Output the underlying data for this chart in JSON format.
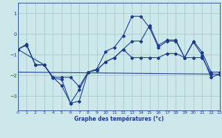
{
  "xlabel": "Graphe des températures (°c)",
  "bg_color": "#cce8ea",
  "grid_color": "#a8c8cc",
  "line_color": "#1a3a9a",
  "xlim": [
    0,
    23
  ],
  "ylim": [
    -3.7,
    1.5
  ],
  "xticks": [
    0,
    1,
    2,
    3,
    4,
    5,
    6,
    7,
    8,
    9,
    10,
    11,
    12,
    13,
    14,
    15,
    16,
    17,
    18,
    19,
    20,
    21,
    22,
    23
  ],
  "yticks": [
    -3,
    -2,
    -1,
    0,
    1
  ],
  "curve1_x": [
    0,
    1,
    2,
    3,
    4,
    5,
    6,
    7,
    8,
    9,
    10,
    11,
    12,
    13,
    14,
    15,
    16,
    17,
    18,
    19,
    20,
    21,
    22,
    23
  ],
  "curve1_y": [
    -0.75,
    -0.55,
    -1.5,
    -1.5,
    -2.1,
    -2.5,
    -3.35,
    -2.7,
    -1.85,
    -1.7,
    -0.85,
    -0.65,
    -0.1,
    0.85,
    0.85,
    0.3,
    -0.65,
    -0.35,
    -0.35,
    -1.15,
    -0.4,
    -1.05,
    -2.1,
    -1.95
  ],
  "curve2_x": [
    0,
    1,
    2,
    3,
    4,
    5,
    6,
    7,
    8,
    9,
    10,
    11,
    12,
    13,
    14,
    15,
    16,
    17,
    18,
    19,
    20,
    21,
    22,
    23
  ],
  "curve2_y": [
    -0.75,
    -0.5,
    -1.5,
    -1.5,
    -2.15,
    -2.2,
    -3.35,
    -3.25,
    -1.85,
    -1.75,
    -1.35,
    -1.15,
    -0.75,
    -0.35,
    -0.35,
    0.4,
    -0.55,
    -0.3,
    -0.3,
    -1.15,
    -0.35,
    -0.9,
    -1.85,
    -1.85
  ],
  "curve3_x": [
    0,
    3,
    4,
    5,
    6,
    7,
    8,
    9,
    10,
    11,
    12,
    13,
    14,
    15,
    16,
    17,
    18,
    19,
    20,
    21,
    22,
    23
  ],
  "curve3_y": [
    -0.75,
    -1.5,
    -2.1,
    -2.1,
    -2.1,
    -2.55,
    -1.85,
    -1.75,
    -1.35,
    -1.15,
    -0.75,
    -1.15,
    -1.15,
    -1.15,
    -1.15,
    -0.95,
    -0.95,
    -1.15,
    -1.15,
    -1.15,
    -1.95,
    -1.95
  ],
  "curve4_x": [
    0,
    23
  ],
  "curve4_y": [
    -1.85,
    -1.95
  ]
}
